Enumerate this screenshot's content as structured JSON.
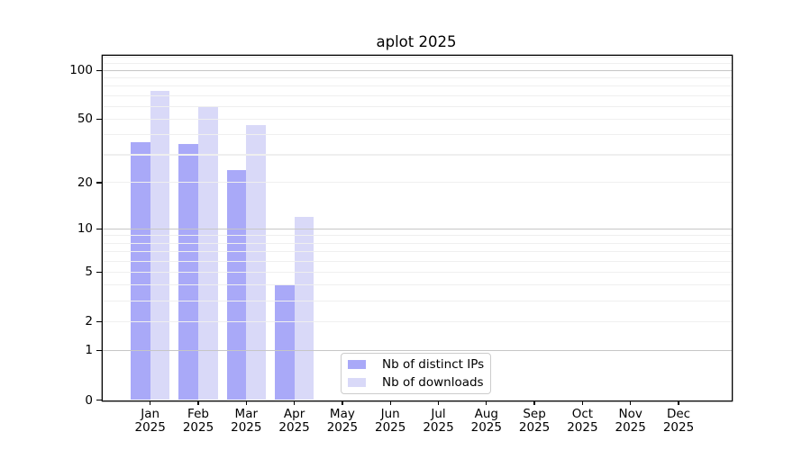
{
  "title": "aplot 2025",
  "colors": {
    "bar_distinct_ips": "#a9a9f8",
    "bar_downloads": "#d9d9f8",
    "grid_major": "#c6c6c6",
    "grid_minor": "#efefef",
    "axis_line": "#000000",
    "legend_border": "#cccccc",
    "text": "#000000",
    "background": "#ffffff"
  },
  "chart_data": {
    "type": "bar",
    "title": "aplot 2025",
    "categories": [
      "Jan",
      "Feb",
      "Mar",
      "Apr",
      "May",
      "Jun",
      "Jul",
      "Aug",
      "Sep",
      "Oct",
      "Nov",
      "Dec"
    ],
    "category_year": "2025",
    "series": [
      {
        "name": "Nb of distinct IPs",
        "color": "#a9a9f8",
        "values": [
          36,
          35,
          24,
          4,
          0,
          0,
          0,
          0,
          0,
          0,
          0,
          0
        ]
      },
      {
        "name": "Nb of downloads",
        "color": "#d9d9f8",
        "values": [
          75,
          60,
          46,
          12,
          0,
          0,
          0,
          0,
          0,
          0,
          0,
          0
        ]
      }
    ],
    "yscale": "log1p",
    "ylim": [
      0,
      124
    ],
    "yticks": [
      0,
      1,
      2,
      5,
      10,
      20,
      50,
      100
    ],
    "grid_major_values": [
      1,
      10,
      100
    ],
    "grid_minor_values": [
      2,
      3,
      4,
      5,
      6,
      7,
      8,
      9,
      20,
      30,
      40,
      50,
      60,
      70,
      80,
      90,
      110,
      120
    ],
    "grid": "on",
    "grid_above_bars": true,
    "legend_position": "inside lower-center",
    "xlabel": "",
    "ylabel": ""
  }
}
